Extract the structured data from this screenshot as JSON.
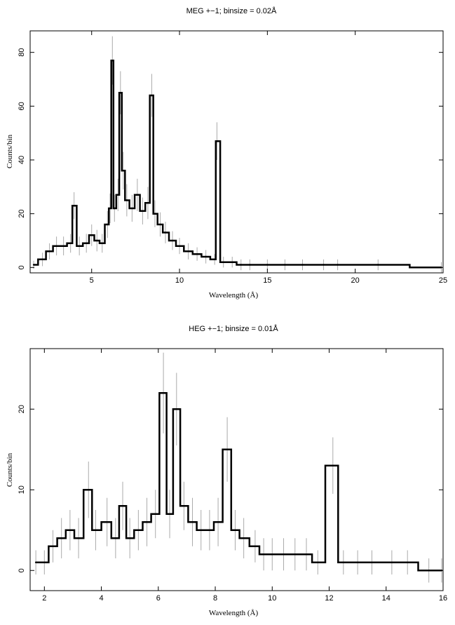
{
  "chart_data": [
    {
      "type": "line",
      "style": "histogram-steps-with-errorbars",
      "title": "MEG +−1; binsize = 0.02Å",
      "xlabel": "Wavelength (Å)",
      "ylabel": "Counts/bin",
      "xlim": [
        1.5,
        25
      ],
      "ylim": [
        -2,
        88
      ],
      "x_ticks": [
        5,
        10,
        15,
        20,
        25
      ],
      "y_ticks": [
        0,
        20,
        40,
        60,
        80
      ],
      "grid": false,
      "series": [
        {
          "values_kind": "counts",
          "colors": {
            "counts": "#000000",
            "errors": "#aaaaaa"
          },
          "x": [
            1.7,
            2.2,
            2.6,
            3.0,
            3.4,
            3.8,
            4.0,
            4.3,
            4.7,
            5.0,
            5.3,
            5.6,
            5.9,
            6.05,
            6.18,
            6.3,
            6.5,
            6.64,
            6.8,
            7.0,
            7.3,
            7.6,
            7.9,
            8.2,
            8.42,
            8.6,
            8.9,
            9.2,
            9.6,
            10.0,
            10.5,
            11.0,
            11.5,
            12.0,
            12.13,
            12.5,
            13.0,
            13.5,
            14.0,
            15.0,
            16.0,
            17.0,
            18.2,
            19.0,
            21.3,
            24.9
          ],
          "y": [
            1,
            3,
            6,
            8,
            8,
            9,
            23,
            8,
            9,
            12,
            10,
            9,
            16,
            22,
            77,
            22,
            27,
            65,
            36,
            25,
            22,
            27,
            21,
            24,
            64,
            20,
            16,
            13,
            10,
            8,
            6,
            5,
            4,
            3,
            47,
            2,
            2,
            1,
            1,
            1,
            1,
            1,
            1,
            1,
            1,
            0
          ],
          "err": [
            1.5,
            2.5,
            3,
            3.5,
            3.5,
            3.5,
            5,
            3.5,
            3.5,
            4,
            4,
            3.5,
            5,
            5.5,
            9,
            5,
            6,
            8,
            7,
            6,
            5,
            6,
            5,
            6,
            8,
            5,
            4.5,
            4,
            3.5,
            3,
            3,
            2.5,
            2.5,
            2,
            7,
            2,
            2,
            2,
            2,
            2,
            2,
            2,
            2,
            2,
            2,
            2
          ]
        }
      ]
    },
    {
      "type": "line",
      "style": "histogram-steps-with-errorbars",
      "title": "HEG +−1; binsize = 0.01Å",
      "xlabel": "Wavelength (Å)",
      "ylabel": "Counts/bin",
      "xlim": [
        1.5,
        16
      ],
      "ylim": [
        -2.5,
        27.5
      ],
      "x_ticks": [
        2,
        4,
        6,
        8,
        10,
        12,
        14,
        16
      ],
      "y_ticks": [
        0,
        10,
        20
      ],
      "grid": false,
      "series": [
        {
          "values_kind": "counts",
          "colors": {
            "counts": "#000000",
            "errors": "#aaaaaa"
          },
          "x": [
            1.7,
            2.0,
            2.3,
            2.6,
            2.9,
            3.2,
            3.55,
            3.8,
            4.2,
            4.5,
            4.75,
            5.0,
            5.3,
            5.6,
            5.9,
            6.18,
            6.4,
            6.64,
            6.9,
            7.2,
            7.5,
            7.8,
            8.1,
            8.42,
            8.7,
            9.0,
            9.4,
            9.7,
            10.0,
            10.4,
            10.8,
            11.2,
            11.6,
            12.13,
            12.5,
            13.0,
            13.5,
            14.2,
            14.75,
            15.5,
            15.95
          ],
          "y": [
            1,
            1,
            3,
            4,
            5,
            4,
            10,
            5,
            6,
            4,
            8,
            4,
            5,
            6,
            7,
            22,
            7,
            20,
            8,
            6,
            5,
            5,
            6,
            15,
            5,
            4,
            3,
            2,
            2,
            2,
            2,
            2,
            1,
            13,
            1,
            1,
            1,
            1,
            1,
            0,
            0
          ],
          "err": [
            1.5,
            1.5,
            2,
            2.5,
            2.5,
            2.5,
            3.5,
            2.5,
            3,
            2.5,
            3,
            2.5,
            2.5,
            3,
            3,
            5,
            3,
            4.5,
            3,
            3,
            2.5,
            2.5,
            3,
            4,
            2.5,
            2.5,
            2,
            2,
            2,
            2,
            2,
            2,
            1.5,
            3.5,
            1.5,
            1.5,
            1.5,
            1.5,
            1.5,
            1.5,
            1.5
          ]
        }
      ]
    }
  ]
}
